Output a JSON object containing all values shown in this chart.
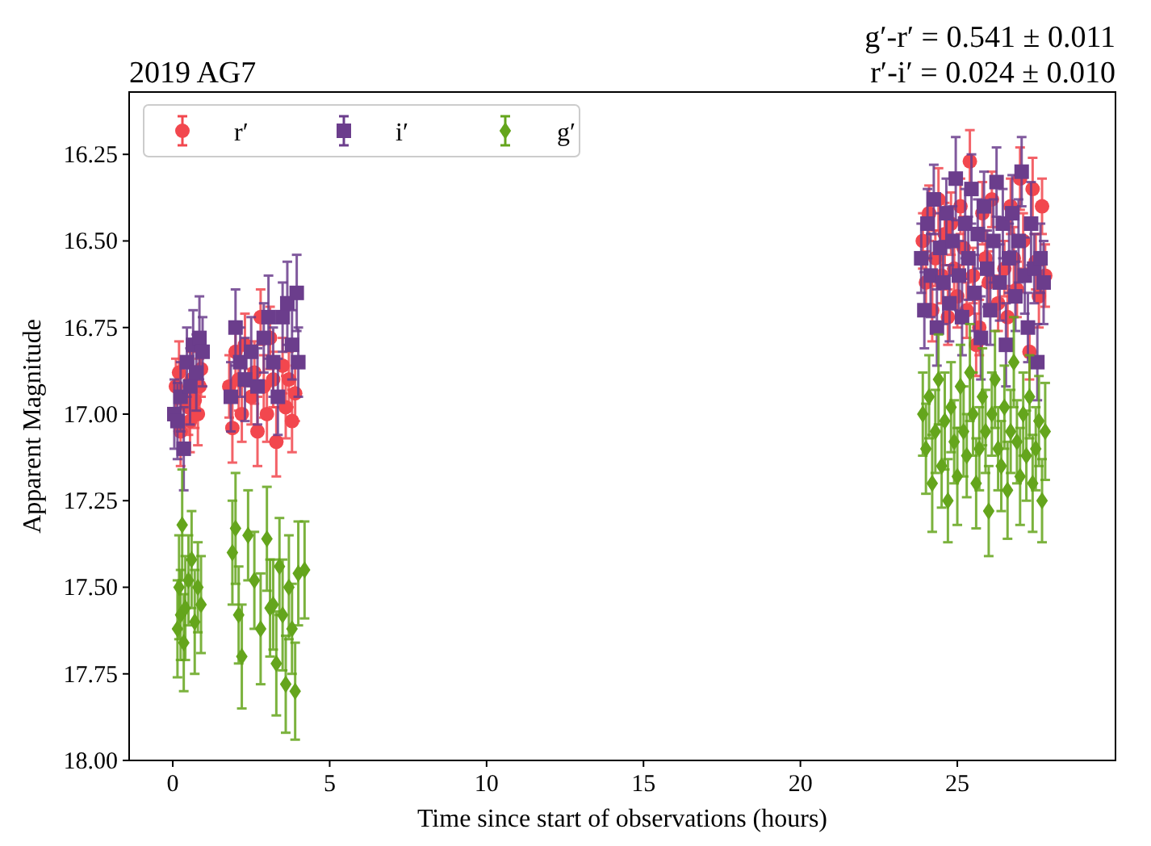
{
  "chart_data": {
    "type": "scatter",
    "title": "2019 AG7",
    "xlabel": "Time since start of observations (hours)",
    "ylabel": "Apparent Magnitude",
    "annotations": [
      "g′-r′ = 0.541 ± 0.011",
      "r′-i′ = 0.024 ± 0.010"
    ],
    "xlim": [
      -1.39,
      30.04
    ],
    "xticks": [
      0,
      5,
      10,
      15,
      20,
      25
    ],
    "ylim": [
      18.0,
      16.07
    ],
    "yticks": [
      16.25,
      {
        "value": 16.5,
        "label": "16.50"
      },
      16.75,
      {
        "value": 17,
        "label": "17.00"
      },
      17.25,
      {
        "value": 17.5,
        "label": "17.50"
      },
      17.75,
      {
        "value": 18,
        "label": "18.00"
      }
    ],
    "grid": false,
    "legend": "top left",
    "series": [
      {
        "name": "r′",
        "color": "#f2474e",
        "marker": "circle",
        "x": [
          0.1,
          0.2,
          0.25,
          0.5,
          0.55,
          0.6,
          0.7,
          0.8,
          0.85,
          0.9,
          1.8,
          1.9,
          2.0,
          2.1,
          2.2,
          2.3,
          2.5,
          2.6,
          2.7,
          2.8,
          2.9,
          3.0,
          3.1,
          3.2,
          3.3,
          3.5,
          3.6,
          3.7,
          3.8,
          3.9,
          23.9,
          24.0,
          24.1,
          24.2,
          24.3,
          24.4,
          24.5,
          24.6,
          24.7,
          24.8,
          24.9,
          25.0,
          25.1,
          25.2,
          25.3,
          25.4,
          25.5,
          25.6,
          25.7,
          25.8,
          25.9,
          26.0,
          26.1,
          26.3,
          26.5,
          26.6,
          26.7,
          26.8,
          26.9,
          27.0,
          27.1,
          27.3,
          27.4,
          27.5,
          27.6,
          27.7,
          27.8
        ],
        "values": [
          16.92,
          16.88,
          17.05,
          16.98,
          17.02,
          16.9,
          16.96,
          17.0,
          16.92,
          16.87,
          16.92,
          17.04,
          16.82,
          16.9,
          17.0,
          16.8,
          16.95,
          16.88,
          17.05,
          16.72,
          16.92,
          17.0,
          16.78,
          16.9,
          17.08,
          16.86,
          16.98,
          16.9,
          17.02,
          16.94,
          16.5,
          16.62,
          16.42,
          16.7,
          16.55,
          16.38,
          16.6,
          16.48,
          16.72,
          16.45,
          16.58,
          16.66,
          16.4,
          16.52,
          16.7,
          16.27,
          16.6,
          16.8,
          16.75,
          16.42,
          16.55,
          16.62,
          16.38,
          16.68,
          16.58,
          16.72,
          16.4,
          16.55,
          16.64,
          16.32,
          16.5,
          16.82,
          16.35,
          16.56,
          16.66,
          16.4,
          16.6
        ],
        "errors": [
          0.08,
          0.09,
          0.1,
          0.08,
          0.09,
          0.08,
          0.08,
          0.09,
          0.08,
          0.08,
          0.09,
          0.1,
          0.08,
          0.09,
          0.08,
          0.09,
          0.08,
          0.09,
          0.1,
          0.08,
          0.09,
          0.08,
          0.09,
          0.08,
          0.1,
          0.08,
          0.09,
          0.08,
          0.09,
          0.08,
          0.08,
          0.09,
          0.08,
          0.09,
          0.08,
          0.09,
          0.08,
          0.09,
          0.08,
          0.09,
          0.08,
          0.09,
          0.08,
          0.09,
          0.08,
          0.09,
          0.08,
          0.09,
          0.08,
          0.09,
          0.08,
          0.09,
          0.08,
          0.08,
          0.08,
          0.09,
          0.08,
          0.09,
          0.08,
          0.09,
          0.08,
          0.08,
          0.09,
          0.08,
          0.09,
          0.08,
          0.09
        ]
      },
      {
        "name": "i′",
        "color": "#6b3d8c",
        "marker": "square",
        "x": [
          0.05,
          0.15,
          0.25,
          0.35,
          0.45,
          0.55,
          0.65,
          0.75,
          0.85,
          0.95,
          1.85,
          2.0,
          2.15,
          2.3,
          2.5,
          2.7,
          2.9,
          3.05,
          3.2,
          3.35,
          3.5,
          3.65,
          3.8,
          3.95,
          4.0,
          23.85,
          23.95,
          24.05,
          24.15,
          24.25,
          24.35,
          24.45,
          24.55,
          24.65,
          24.75,
          24.85,
          24.95,
          25.05,
          25.15,
          25.25,
          25.35,
          25.45,
          25.55,
          25.65,
          25.75,
          25.85,
          25.95,
          26.05,
          26.15,
          26.25,
          26.35,
          26.45,
          26.55,
          26.65,
          26.75,
          26.85,
          26.95,
          27.05,
          27.15,
          27.25,
          27.35,
          27.45,
          27.55,
          27.65,
          27.75
        ],
        "values": [
          17.0,
          17.02,
          16.95,
          17.1,
          16.85,
          16.92,
          16.8,
          16.88,
          16.78,
          16.82,
          16.95,
          16.75,
          16.85,
          16.9,
          16.82,
          16.92,
          16.78,
          16.72,
          16.85,
          16.95,
          16.72,
          16.68,
          16.8,
          16.65,
          16.85,
          16.55,
          16.7,
          16.45,
          16.6,
          16.38,
          16.75,
          16.52,
          16.62,
          16.42,
          16.68,
          16.5,
          16.32,
          16.6,
          16.72,
          16.45,
          16.55,
          16.35,
          16.65,
          16.48,
          16.78,
          16.4,
          16.58,
          16.7,
          16.5,
          16.33,
          16.62,
          16.45,
          16.8,
          16.55,
          16.42,
          16.66,
          16.5,
          16.3,
          16.6,
          16.75,
          16.45,
          16.58,
          16.85,
          16.55,
          16.62
        ],
        "errors": [
          0.1,
          0.11,
          0.1,
          0.12,
          0.1,
          0.11,
          0.1,
          0.11,
          0.12,
          0.1,
          0.1,
          0.11,
          0.1,
          0.12,
          0.1,
          0.11,
          0.1,
          0.12,
          0.1,
          0.11,
          0.1,
          0.12,
          0.1,
          0.11,
          0.1,
          0.1,
          0.11,
          0.1,
          0.12,
          0.1,
          0.11,
          0.1,
          0.12,
          0.1,
          0.11,
          0.1,
          0.12,
          0.1,
          0.11,
          0.1,
          0.12,
          0.1,
          0.11,
          0.1,
          0.12,
          0.1,
          0.11,
          0.1,
          0.12,
          0.1,
          0.11,
          0.1,
          0.12,
          0.1,
          0.11,
          0.1,
          0.12,
          0.1,
          0.11,
          0.1,
          0.12,
          0.1,
          0.11,
          0.1,
          0.12
        ]
      },
      {
        "name": "g′",
        "color": "#64a51c",
        "marker": "diamond",
        "x": [
          0.15,
          0.2,
          0.25,
          0.3,
          0.35,
          0.4,
          0.5,
          0.6,
          0.7,
          0.8,
          0.9,
          1.9,
          2.0,
          2.1,
          2.2,
          2.4,
          2.6,
          2.8,
          3.0,
          3.1,
          3.2,
          3.3,
          3.4,
          3.5,
          3.6,
          3.7,
          3.8,
          3.9,
          4.0,
          4.2,
          23.9,
          24.0,
          24.1,
          24.2,
          24.3,
          24.4,
          24.5,
          24.6,
          24.7,
          24.8,
          24.9,
          25.0,
          25.1,
          25.2,
          25.3,
          25.4,
          25.5,
          25.6,
          25.7,
          25.8,
          25.9,
          26.0,
          26.1,
          26.2,
          26.3,
          26.4,
          26.5,
          26.6,
          26.7,
          26.8,
          26.9,
          27.0,
          27.1,
          27.2,
          27.3,
          27.4,
          27.5,
          27.6,
          27.7,
          27.8
        ],
        "values": [
          17.62,
          17.5,
          17.58,
          17.32,
          17.66,
          17.56,
          17.48,
          17.42,
          17.6,
          17.5,
          17.55,
          17.4,
          17.33,
          17.58,
          17.7,
          17.35,
          17.48,
          17.62,
          17.36,
          17.56,
          17.55,
          17.72,
          17.44,
          17.58,
          17.78,
          17.5,
          17.62,
          17.8,
          17.46,
          17.45,
          17.0,
          17.1,
          16.95,
          17.2,
          17.05,
          16.9,
          17.15,
          17.02,
          17.25,
          16.98,
          17.08,
          17.18,
          16.92,
          17.05,
          17.12,
          16.88,
          17.0,
          17.2,
          17.1,
          16.95,
          17.05,
          17.28,
          17.0,
          16.9,
          17.1,
          17.15,
          16.98,
          17.22,
          17.05,
          16.85,
          17.08,
          17.18,
          17.0,
          17.12,
          16.95,
          17.2,
          17.1,
          17.02,
          17.25,
          17.05
        ],
        "errors": [
          0.14,
          0.15,
          0.13,
          0.16,
          0.14,
          0.15,
          0.13,
          0.14,
          0.15,
          0.13,
          0.14,
          0.15,
          0.16,
          0.14,
          0.15,
          0.13,
          0.14,
          0.16,
          0.15,
          0.14,
          0.13,
          0.15,
          0.14,
          0.16,
          0.14,
          0.15,
          0.13,
          0.14,
          0.15,
          0.14,
          0.12,
          0.13,
          0.12,
          0.14,
          0.12,
          0.13,
          0.12,
          0.14,
          0.12,
          0.13,
          0.12,
          0.14,
          0.12,
          0.13,
          0.12,
          0.14,
          0.12,
          0.13,
          0.12,
          0.14,
          0.12,
          0.13,
          0.12,
          0.14,
          0.12,
          0.13,
          0.12,
          0.14,
          0.12,
          0.13,
          0.12,
          0.14,
          0.12,
          0.13,
          0.12,
          0.14,
          0.12,
          0.13,
          0.12,
          0.14
        ]
      }
    ]
  }
}
